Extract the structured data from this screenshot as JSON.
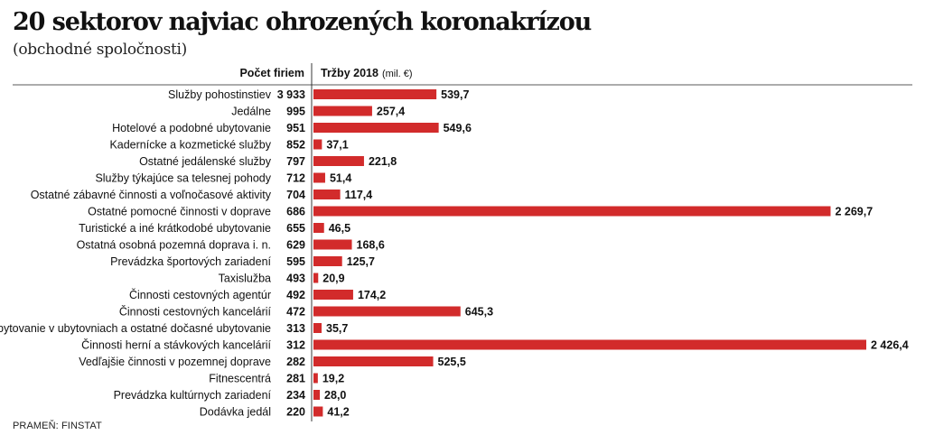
{
  "header": {
    "title": "20 sektorov najviac ohrozených koronakrízou",
    "subtitle": "(obchodné spoločnosti)"
  },
  "source": "PRAMEŇ: FINSTAT",
  "chart_data": {
    "type": "bar",
    "orientation": "horizontal",
    "columns": {
      "count_header": "Počet firiem",
      "revenue_header": "Tržby 2018",
      "revenue_unit": "(mil. €)"
    },
    "bar_color": "#d22b2b",
    "xlim": [
      0,
      2426.4
    ],
    "categories": [
      "Služby pohostinstiev",
      "Jedálne",
      "Hotelové a podobné ubytovanie",
      "Kadernícke a kozmetické služby",
      "Ostatné jedálenské služby",
      "Služby týkajúce sa telesnej pohody",
      "Ostatné zábavné činnosti a voľnočasové aktivity",
      "Ostatné pomocné činnosti v doprave",
      "Turistické a iné krátkodobé ubytovanie",
      "Ostatná osobná pozemná doprava i. n.",
      "Prevádzka športových zariadení",
      "Taxislužba",
      "Činnosti cestovných agentúr",
      "Činnosti cestovných kancelárií",
      "Ubytovanie v ubytovniach a ostatné dočasné ubytovanie",
      "Činnosti herní a stávkových kancelárií",
      "Vedľajšie činnosti v pozemnej doprave",
      "Fitnescentrá",
      "Prevádzka kultúrnych zariadení",
      "Dodávka jedál"
    ],
    "counts": [
      "3 933",
      "995",
      "951",
      "852",
      "797",
      "712",
      "704",
      "686",
      "655",
      "629",
      "595",
      "493",
      "492",
      "472",
      "313",
      "312",
      "282",
      "281",
      "234",
      "220"
    ],
    "values": [
      539.7,
      257.4,
      549.6,
      37.1,
      221.8,
      51.4,
      117.4,
      2269.7,
      46.5,
      168.6,
      125.7,
      20.9,
      174.2,
      645.3,
      35.7,
      2426.4,
      525.5,
      19.2,
      28.0,
      41.2
    ],
    "value_labels": [
      "539,7",
      "257,4",
      "549,6",
      "37,1",
      "221,8",
      "51,4",
      "117,4",
      "2 269,7",
      "46,5",
      "168,6",
      "125,7",
      "20,9",
      "174,2",
      "645,3",
      "35,7",
      "2 426,4",
      "525,5",
      "19,2",
      "28,0",
      "41,2"
    ]
  }
}
